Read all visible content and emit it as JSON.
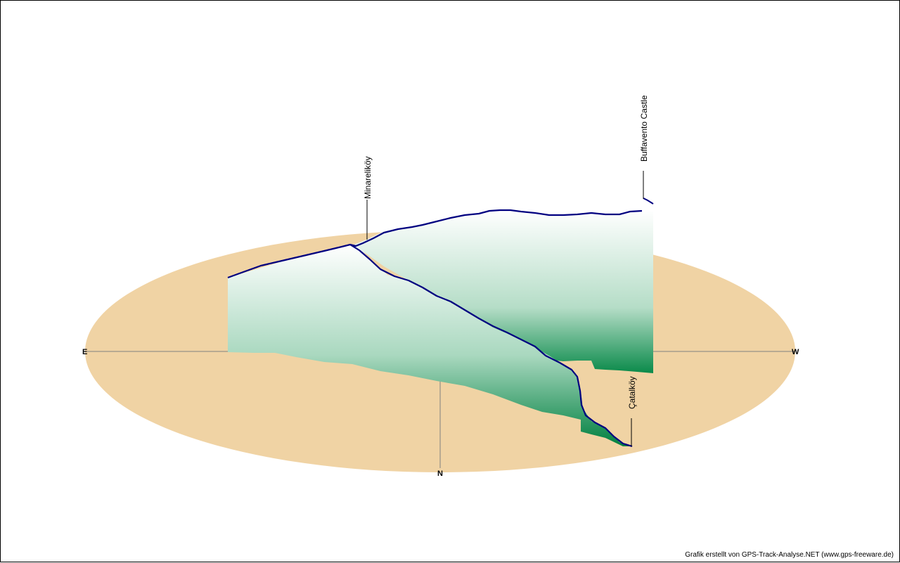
{
  "compass": {
    "east": "E",
    "west": "W",
    "north": "N"
  },
  "waypoints": {
    "minarelikoy": "Minareliköy",
    "buffavento": "Buffavento Castle",
    "catalkoy": "Çatalköy"
  },
  "credit": "Grafik erstellt von GPS-Track-Analyse.NET (www.gps-freeware.de)",
  "colors": {
    "ground": "#F0D3A4",
    "track": "#000080",
    "curtain_top": "#FFFFFF",
    "curtain_bottom": "#008040",
    "axis": "#808080"
  }
}
